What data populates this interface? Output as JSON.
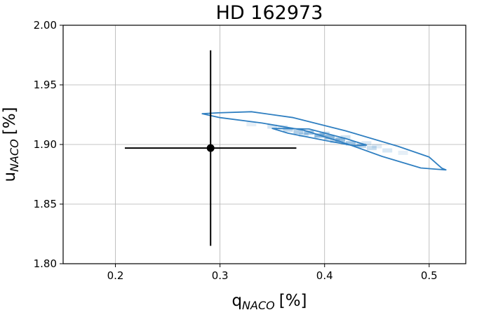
{
  "chart_data": {
    "type": "scatter",
    "title": "HD 162973",
    "xlabel": {
      "main": "q",
      "subscript": "NACO",
      "unit": "[%]"
    },
    "ylabel": {
      "main": "u",
      "subscript": "NACO",
      "unit": "[%]"
    },
    "xlim": [
      0.15,
      0.535
    ],
    "ylim": [
      1.8,
      2.0
    ],
    "xticks": [
      {
        "value": 0.2,
        "label": "0.2"
      },
      {
        "value": 0.3,
        "label": "0.3"
      },
      {
        "value": 0.4,
        "label": "0.4"
      },
      {
        "value": 0.5,
        "label": "0.5"
      }
    ],
    "yticks": [
      {
        "value": 1.8,
        "label": "1.80"
      },
      {
        "value": 1.85,
        "label": "1.85"
      },
      {
        "value": 1.9,
        "label": "1.90"
      },
      {
        "value": 1.95,
        "label": "1.95"
      },
      {
        "value": 2.0,
        "label": "2.00"
      }
    ],
    "grid": true,
    "point": {
      "x": 0.291,
      "y": 1.897,
      "xerr": [
        0.082,
        0.082
      ],
      "yerr": [
        0.082,
        0.082
      ],
      "color": "#000000"
    },
    "contours": [
      {
        "name": "outer",
        "color": "#2f7fc1",
        "points": [
          [
            0.298,
            1.9265
          ],
          [
            0.33,
            1.9275
          ],
          [
            0.37,
            1.9225
          ],
          [
            0.42,
            1.9115
          ],
          [
            0.47,
            1.8985
          ],
          [
            0.5,
            1.8895
          ],
          [
            0.512,
            1.8802
          ],
          [
            0.516,
            1.8787
          ],
          [
            0.508,
            1.8792
          ],
          [
            0.492,
            1.8803
          ],
          [
            0.455,
            1.89
          ],
          [
            0.42,
            1.901
          ],
          [
            0.38,
            1.912
          ],
          [
            0.34,
            1.918
          ],
          [
            0.3,
            1.9225
          ],
          [
            0.283,
            1.9258
          ]
        ]
      },
      {
        "name": "inner",
        "color": "#2f7fc1",
        "points": [
          [
            0.35,
            1.9135
          ],
          [
            0.385,
            1.913
          ],
          [
            0.42,
            1.905
          ],
          [
            0.44,
            1.8995
          ],
          [
            0.428,
            1.899
          ],
          [
            0.4,
            1.9035
          ],
          [
            0.365,
            1.9095
          ]
        ]
      }
    ],
    "density": {
      "color": "#2f7fc1",
      "cells": [
        {
          "x": 0.33,
          "y": 1.917,
          "opacity": 0.12
        },
        {
          "x": 0.35,
          "y": 1.915,
          "opacity": 0.2
        },
        {
          "x": 0.365,
          "y": 1.9125,
          "opacity": 0.3
        },
        {
          "x": 0.375,
          "y": 1.9105,
          "opacity": 0.38
        },
        {
          "x": 0.385,
          "y": 1.91,
          "opacity": 0.45
        },
        {
          "x": 0.395,
          "y": 1.9075,
          "opacity": 0.55
        },
        {
          "x": 0.405,
          "y": 1.906,
          "opacity": 0.55
        },
        {
          "x": 0.415,
          "y": 1.904,
          "opacity": 0.5
        },
        {
          "x": 0.425,
          "y": 1.901,
          "opacity": 0.45
        },
        {
          "x": 0.435,
          "y": 1.899,
          "opacity": 0.35
        },
        {
          "x": 0.445,
          "y": 1.897,
          "opacity": 0.25
        },
        {
          "x": 0.46,
          "y": 1.895,
          "opacity": 0.18
        },
        {
          "x": 0.475,
          "y": 1.893,
          "opacity": 0.12
        },
        {
          "x": 0.4,
          "y": 1.909,
          "opacity": 0.3
        },
        {
          "x": 0.41,
          "y": 1.903,
          "opacity": 0.3
        },
        {
          "x": 0.38,
          "y": 1.908,
          "opacity": 0.22
        },
        {
          "x": 0.42,
          "y": 1.906,
          "opacity": 0.22
        },
        {
          "x": 0.44,
          "y": 1.901,
          "opacity": 0.18
        },
        {
          "x": 0.36,
          "y": 1.9145,
          "opacity": 0.15
        },
        {
          "x": 0.45,
          "y": 1.8985,
          "opacity": 0.15
        }
      ]
    }
  }
}
